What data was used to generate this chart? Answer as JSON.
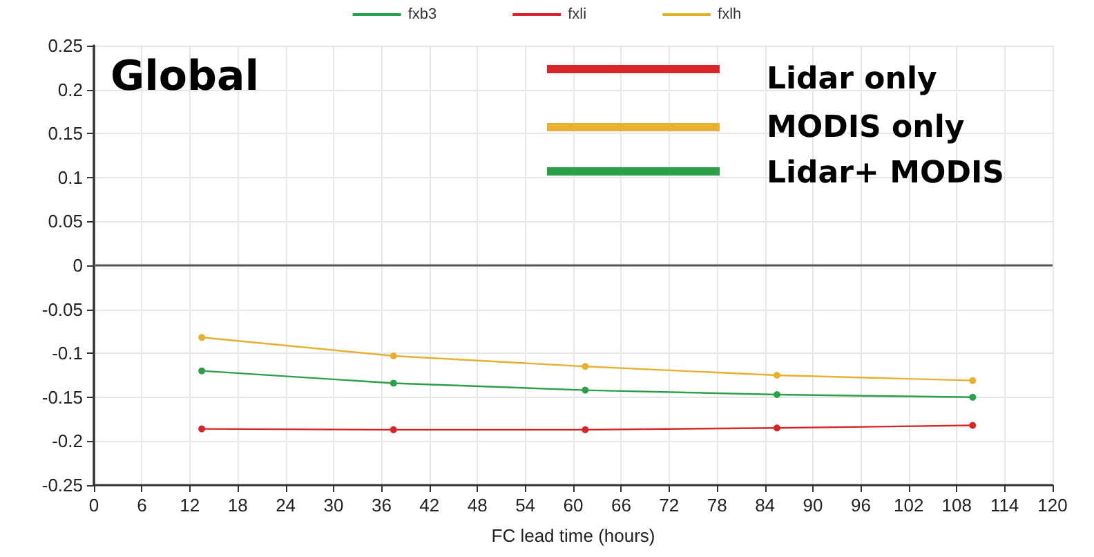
{
  "chart_data": {
    "type": "line",
    "xlabel": "FC lead time (hours)",
    "x": [
      13.5,
      37.5,
      61.5,
      85.5,
      110
    ],
    "series": [
      {
        "name": "fxb3",
        "color": "#2ca048",
        "values": [
          -0.12,
          -0.134,
          -0.142,
          -0.147,
          -0.15
        ]
      },
      {
        "name": "fxli",
        "color": "#d62728",
        "values": [
          -0.186,
          -0.187,
          -0.187,
          -0.185,
          -0.182
        ]
      },
      {
        "name": "fxlh",
        "color": "#e8b030",
        "values": [
          -0.082,
          -0.103,
          -0.115,
          -0.125,
          -0.131
        ]
      }
    ],
    "xlim": [
      0,
      120
    ],
    "xticks": [
      0,
      6,
      12,
      18,
      24,
      30,
      36,
      42,
      48,
      54,
      60,
      66,
      72,
      78,
      84,
      90,
      96,
      102,
      108,
      114,
      120
    ],
    "ylim": [
      -0.25,
      0.25
    ],
    "yticks": [
      -0.25,
      -0.2,
      -0.15,
      -0.1,
      -0.05,
      0,
      0.05,
      0.1,
      0.15,
      0.2,
      0.25
    ],
    "ref_lines": [
      {
        "axis": "y",
        "value": 0,
        "color": "#555555"
      }
    ],
    "annotations": [
      "Global",
      "Lidar only",
      "MODIS only",
      "Lidar+ MODIS"
    ],
    "grid": true,
    "legend": "top",
    "marker": "circle",
    "line_style": "solid"
  }
}
